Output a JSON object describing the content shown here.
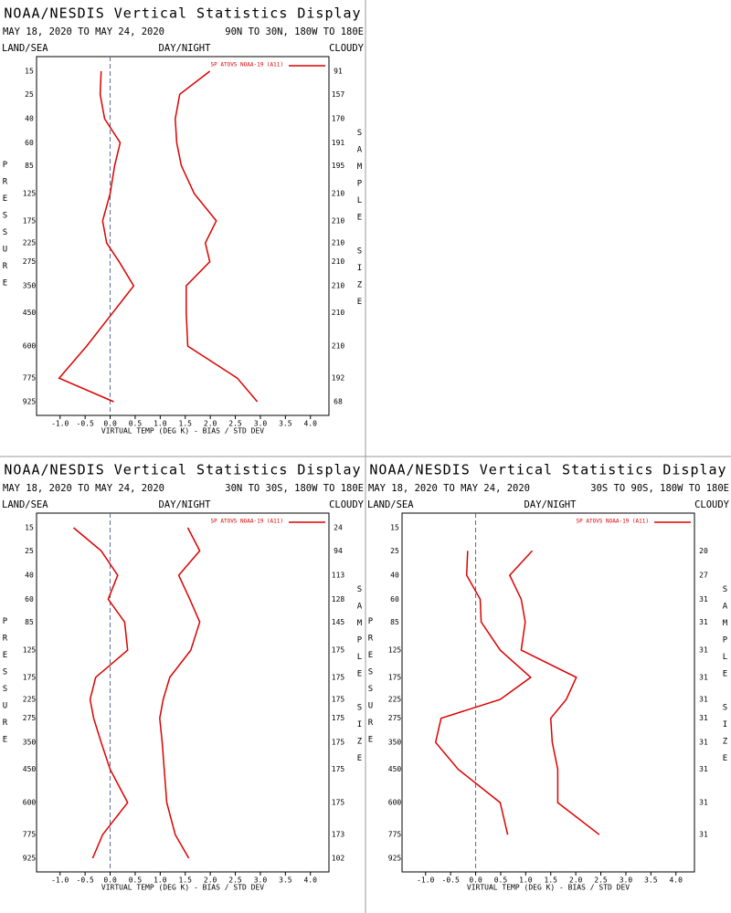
{
  "chart_data": [
    {
      "type": "line",
      "title": "NOAA/NESDIS Vertical Statistics Display",
      "date_range": "MAY 18, 2020 TO MAY 24, 2020",
      "region": "90N TO 30N, 180W TO 180E",
      "land_sea": "LAND/SEA",
      "day_night": "DAY/NIGHT",
      "cloudy": "CLOUDY",
      "y_label": "PRESSURE",
      "y2_label": "SAMPLE SIZE",
      "x_label": "VIRTUAL TEMP (DEG K) - BIAS / STD DEV",
      "levels": [
        15,
        25,
        40,
        60,
        85,
        125,
        175,
        225,
        275,
        350,
        450,
        600,
        775,
        925
      ],
      "sample_size": [
        91,
        157,
        170,
        191,
        195,
        210,
        210,
        210,
        210,
        210,
        210,
        210,
        192,
        68
      ],
      "series": [
        {
          "name": "SP ATOVS NOAA-19 (A11)",
          "color": "#dd0000",
          "values": [
            -0.18,
            -0.2,
            -0.11,
            0.2,
            0.09,
            0.0,
            -0.15,
            -0.07,
            0.18,
            0.47,
            0.05,
            -0.47,
            -1.02,
            0.07
          ]
        },
        {
          "color": "#dd0000",
          "values": [
            1.99,
            1.39,
            1.3,
            1.33,
            1.42,
            1.68,
            2.12,
            1.9,
            1.99,
            1.52,
            1.52,
            1.55,
            2.54,
            2.94
          ]
        }
      ],
      "xlim": [
        -1.47,
        4.37
      ],
      "xticks": [
        {
          "value": -1.0,
          "label": "-1.0"
        },
        {
          "value": -0.5,
          "label": "-0.5"
        },
        {
          "value": 0,
          "label": "0.0"
        },
        {
          "value": 0.5,
          "label": "0.5"
        },
        {
          "value": 1.0,
          "label": "1.0"
        },
        {
          "value": 1.5,
          "label": "1.5"
        },
        {
          "value": 2.0,
          "label": "2.0"
        },
        {
          "value": 2.5,
          "label": "2.5"
        },
        {
          "value": 3.0,
          "label": "3.0"
        },
        {
          "value": 3.5,
          "label": "3.5"
        },
        {
          "value": 4.0,
          "label": "4.0"
        }
      ]
    },
    {
      "type": "line",
      "title": "NOAA/NESDIS Vertical Statistics Display",
      "date_range": "MAY 18, 2020 TO MAY 24, 2020",
      "region": "30N TO 30S, 180W TO 180E",
      "land_sea": "LAND/SEA",
      "day_night": "DAY/NIGHT",
      "cloudy": "CLOUDY",
      "y_label": "PRESSURE",
      "y2_label": "SAMPLE SIZE",
      "x_label": "VIRTUAL TEMP (DEG K) - BIAS / STD DEV",
      "levels": [
        15,
        25,
        40,
        60,
        85,
        125,
        175,
        225,
        275,
        350,
        450,
        600,
        775,
        925
      ],
      "sample_size": [
        24,
        94,
        113,
        128,
        145,
        175,
        175,
        175,
        175,
        175,
        175,
        175,
        173,
        102
      ],
      "series": [
        {
          "name": "SP ATOVS NOAA-19 (A11)",
          "color": "#dd0000",
          "values": [
            -0.73,
            -0.18,
            0.15,
            -0.04,
            0.29,
            0.35,
            -0.29,
            -0.4,
            -0.33,
            -0.18,
            0.0,
            0.35,
            -0.15,
            -0.35
          ]
        },
        {
          "color": "#dd0000",
          "values": [
            1.55,
            1.79,
            1.37,
            1.59,
            1.79,
            1.61,
            1.19,
            1.06,
            0.99,
            1.04,
            1.08,
            1.13,
            1.3,
            1.57
          ]
        }
      ],
      "xlim": [
        -1.47,
        4.37
      ],
      "xticks": [
        {
          "value": -1.0,
          "label": "-1.0"
        },
        {
          "value": -0.5,
          "label": "-0.5"
        },
        {
          "value": 0,
          "label": "0.0"
        },
        {
          "value": 0.5,
          "label": "0.5"
        },
        {
          "value": 1.0,
          "label": "1.0"
        },
        {
          "value": 1.5,
          "label": "1.5"
        },
        {
          "value": 2.0,
          "label": "2.0"
        },
        {
          "value": 2.5,
          "label": "2.5"
        },
        {
          "value": 3.0,
          "label": "3.0"
        },
        {
          "value": 3.5,
          "label": "3.5"
        },
        {
          "value": 4.0,
          "label": "4.0"
        }
      ]
    },
    {
      "type": "line",
      "title": "NOAA/NESDIS Vertical Statistics Display",
      "date_range": "MAY 18, 2020 TO MAY 24, 2020",
      "region": "30S TO 90S, 180W TO 180E",
      "land_sea": "LAND/SEA",
      "day_night": "DAY/NIGHT",
      "cloudy": "CLOUDY",
      "y_label": "PRESSURE",
      "y2_label": "SAMPLE SIZE",
      "x_label": "VIRTUAL TEMP (DEG K) - BIAS / STD DEV",
      "levels": [
        15,
        25,
        40,
        60,
        85,
        125,
        175,
        225,
        275,
        350,
        450,
        600,
        775,
        925
      ],
      "sample_size": [
        null,
        20,
        27,
        31,
        31,
        31,
        31,
        31,
        31,
        31,
        31,
        31,
        31,
        null
      ],
      "series": [
        {
          "name": "SP ATOVS NOAA-19 (A11)",
          "color": "#dd0000",
          "values": [
            null,
            -0.16,
            -0.18,
            0.09,
            0.11,
            0.49,
            1.1,
            0.49,
            -0.69,
            -0.8,
            -0.35,
            0.49,
            0.64,
            null
          ]
        },
        {
          "color": "#dd0000",
          "values": [
            null,
            1.13,
            0.68,
            0.91,
            0.99,
            0.91,
            2.01,
            1.81,
            1.5,
            1.53,
            1.64,
            1.64,
            2.47,
            null
          ]
        }
      ],
      "xlim": [
        -1.47,
        4.37
      ],
      "xticks": [
        {
          "value": -1.0,
          "label": "-1.0"
        },
        {
          "value": -0.5,
          "label": "-0.5"
        },
        {
          "value": 0,
          "label": "0.0"
        },
        {
          "value": 0.5,
          "label": "0.5"
        },
        {
          "value": 1.0,
          "label": "1.0"
        },
        {
          "value": 1.5,
          "label": "1.5"
        },
        {
          "value": 2.0,
          "label": "2.0"
        },
        {
          "value": 2.5,
          "label": "2.5"
        },
        {
          "value": 3.0,
          "label": "3.0"
        },
        {
          "value": 3.5,
          "label": "3.5"
        },
        {
          "value": 4.0,
          "label": "4.0"
        }
      ]
    }
  ]
}
